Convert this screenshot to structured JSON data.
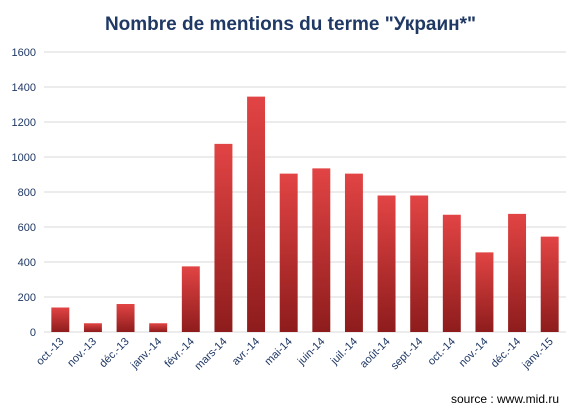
{
  "chart_data": {
    "type": "bar",
    "title": "Nombre de mentions du terme \"Украин*\"",
    "categories": [
      "oct.-13",
      "nov.-13",
      "déc.-13",
      "janv.-14",
      "févr.-14",
      "mars-14",
      "avr.-14",
      "mai-14",
      "juin-14",
      "juil.-14",
      "août-14",
      "sept.-14",
      "oct.-14",
      "nov.-14",
      "déc.-14",
      "janv.-15"
    ],
    "values": [
      140,
      50,
      160,
      50,
      375,
      1075,
      1345,
      905,
      935,
      905,
      780,
      780,
      670,
      455,
      675,
      545
    ],
    "ylim": [
      0,
      1600
    ],
    "yticks": [
      0,
      200,
      400,
      600,
      800,
      1000,
      1200,
      1400,
      1600
    ],
    "xlabel": "",
    "ylabel": "",
    "grid": true,
    "legend": "none"
  },
  "colors": {
    "bar_top": "#e24444",
    "bar_bottom": "#8e1c1c",
    "title": "#1f3864",
    "axis_text": "#1f3864",
    "grid": "#dadada"
  },
  "source": "source : www.mid.ru"
}
